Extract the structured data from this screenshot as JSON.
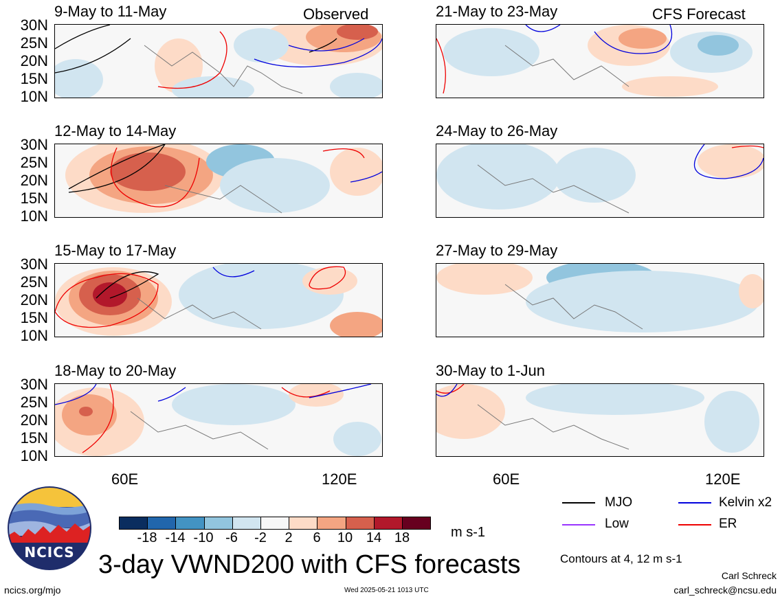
{
  "observed_label": "Observed",
  "forecast_label": "CFS Forecast",
  "panels": [
    {
      "title": "9-May to 11-May"
    },
    {
      "title": "21-May to 23-May"
    },
    {
      "title": "12-May to 14-May"
    },
    {
      "title": "24-May to 26-May"
    },
    {
      "title": "15-May to 17-May"
    },
    {
      "title": "27-May to 29-May"
    },
    {
      "title": "18-May to 20-May"
    },
    {
      "title": "30-May to 1-Jun"
    }
  ],
  "lat_labels": [
    "30N",
    "25N",
    "20N",
    "15N",
    "10N"
  ],
  "lon_labels": [
    "60E",
    "120E"
  ],
  "colorbar": {
    "labels": [
      "-18",
      "-14",
      "-10",
      "-6",
      "-2",
      "2",
      "6",
      "10",
      "14",
      "18"
    ],
    "colors": [
      "#0a2d5f",
      "#2166ac",
      "#4393c3",
      "#92c5de",
      "#d1e5f0",
      "#f7f7f7",
      "#fddbc7",
      "#f4a582",
      "#d6604d",
      "#b2182b",
      "#67001f"
    ],
    "units": "m s-1"
  },
  "legend": [
    {
      "label": "MJO",
      "color": "#000000"
    },
    {
      "label": "Kelvin x2",
      "color": "#0000dd"
    },
    {
      "label": "Low",
      "color": "#9933ff"
    },
    {
      "label": "ER",
      "color": "#ee0000"
    }
  ],
  "contour_note": "Contours at 4, 12 m s-1",
  "main_title": "3-day VWND200 with CFS forecasts",
  "logo_text": "NCICS",
  "footer_left": "ncics.org/mjo",
  "footer_center": "Wed 2025-05-21 1013 UTC",
  "author": "Carl Schreck",
  "email": "carl_schreck@ncsu.edu"
}
